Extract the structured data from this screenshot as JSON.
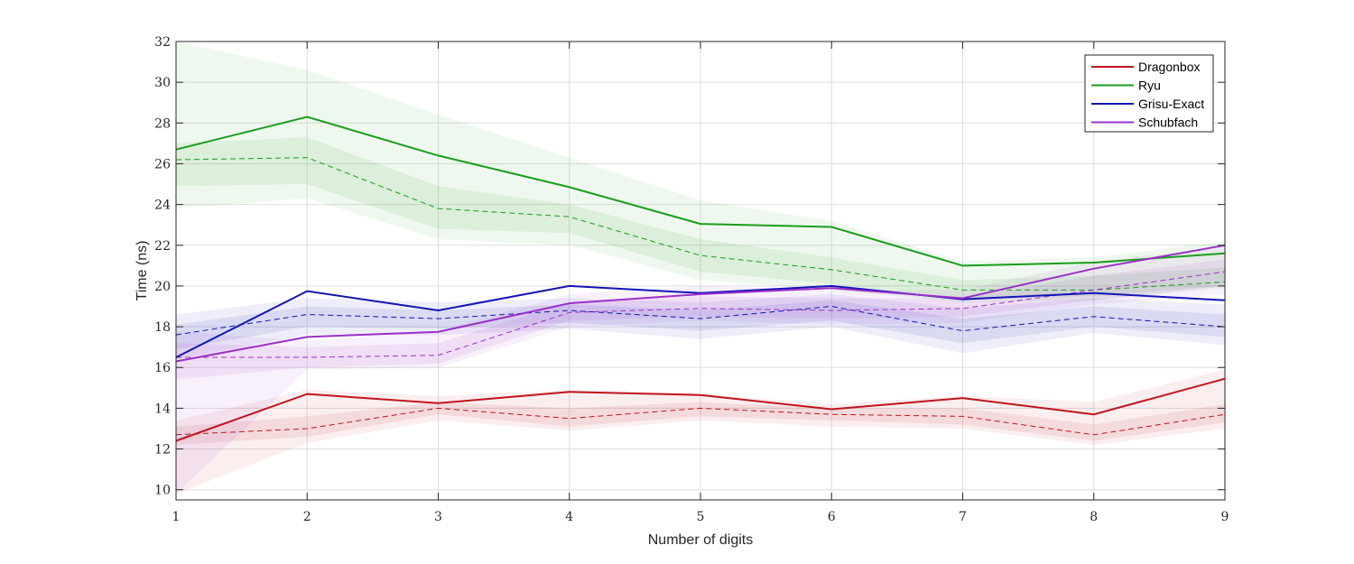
{
  "chart_data": {
    "type": "line",
    "title": "",
    "xlabel": "Number of digits",
    "ylabel": "Time (ns)",
    "x": [
      1,
      2,
      3,
      4,
      5,
      6,
      7,
      8,
      9
    ],
    "xlim": [
      1,
      9
    ],
    "ylim": [
      9.5,
      32
    ],
    "xticks": [
      1,
      2,
      3,
      4,
      5,
      6,
      7,
      8,
      9
    ],
    "yticks": [
      10,
      12,
      14,
      16,
      18,
      20,
      22,
      24,
      26,
      28,
      30,
      32
    ],
    "grid": true,
    "legend_position": "top-right",
    "series": [
      {
        "name": "Dragonbox",
        "color": "#c0141e",
        "mean": [
          12.4,
          14.7,
          14.25,
          14.8,
          14.65,
          13.95,
          14.5,
          13.7,
          15.45
        ],
        "median": [
          12.7,
          13.0,
          14.0,
          13.5,
          14.0,
          13.7,
          13.6,
          12.7,
          13.7
        ],
        "band_outer": {
          "lower": [
            9.8,
            12.3,
            13.4,
            12.9,
            13.4,
            13.1,
            13.0,
            12.2,
            13.0
          ],
          "upper": [
            13.4,
            14.9,
            14.6,
            14.9,
            14.7,
            14.2,
            14.6,
            14.3,
            15.9
          ]
        },
        "band_inner": {
          "lower": [
            12.2,
            12.6,
            13.7,
            13.1,
            13.6,
            13.4,
            13.2,
            12.4,
            13.3
          ],
          "upper": [
            13.1,
            13.6,
            14.3,
            14.0,
            14.3,
            14.0,
            14.0,
            13.2,
            14.2
          ]
        }
      },
      {
        "name": "Ryu",
        "color": "#1a9e1a",
        "mean": [
          26.7,
          28.3,
          26.4,
          24.85,
          23.05,
          22.9,
          21.0,
          21.15,
          21.6
        ],
        "median": [
          26.2,
          26.3,
          23.8,
          23.4,
          21.5,
          20.8,
          19.8,
          19.8,
          20.2
        ],
        "band_outer": {
          "lower": [
            23.8,
            24.3,
            22.3,
            22.0,
            20.3,
            19.8,
            19.2,
            19.3,
            19.9
          ],
          "upper": [
            32.0,
            30.6,
            28.4,
            26.3,
            24.2,
            23.2,
            21.2,
            21.4,
            22.2
          ]
        },
        "band_inner": {
          "lower": [
            24.9,
            25.0,
            22.8,
            22.6,
            20.7,
            20.1,
            19.4,
            19.5,
            20.0
          ],
          "upper": [
            27.0,
            27.3,
            24.9,
            24.0,
            22.3,
            21.4,
            20.3,
            20.5,
            20.9
          ]
        }
      },
      {
        "name": "Grisu-Exact",
        "color": "#1414b4",
        "mean": [
          16.5,
          19.75,
          18.8,
          20.0,
          19.65,
          20.0,
          19.35,
          19.65,
          19.3
        ],
        "median": [
          17.6,
          18.6,
          18.4,
          18.8,
          18.4,
          19.0,
          17.8,
          18.5,
          18.0
        ],
        "band_outer": {
          "lower": [
            16.4,
            17.6,
            17.6,
            17.9,
            17.4,
            18.0,
            16.7,
            17.7,
            17.1
          ],
          "upper": [
            18.6,
            19.4,
            19.2,
            19.4,
            19.2,
            19.6,
            18.9,
            19.4,
            19.1
          ]
        },
        "band_inner": {
          "lower": [
            16.9,
            18.0,
            17.9,
            18.2,
            17.8,
            18.3,
            17.2,
            18.0,
            17.5
          ],
          "upper": [
            18.1,
            19.0,
            18.8,
            19.1,
            18.8,
            19.3,
            18.4,
            19.0,
            18.6
          ]
        }
      },
      {
        "name": "Schubfach",
        "color": "#9b30c8",
        "mean": [
          16.3,
          17.5,
          17.75,
          19.15,
          19.6,
          19.9,
          19.4,
          20.85,
          22.0
        ],
        "median": [
          16.5,
          16.5,
          16.6,
          18.7,
          18.9,
          18.8,
          18.9,
          19.8,
          20.7
        ],
        "band_outer": {
          "lower": [
            9.8,
            15.9,
            16.0,
            18.0,
            18.3,
            18.1,
            18.2,
            19.1,
            19.6
          ],
          "upper": [
            17.8,
            17.3,
            17.8,
            19.6,
            20.0,
            19.8,
            19.8,
            21.2,
            21.9
          ]
        },
        "band_inner": {
          "lower": [
            15.4,
            16.0,
            16.2,
            18.3,
            18.5,
            18.4,
            18.5,
            19.3,
            20.0
          ],
          "upper": [
            17.2,
            17.0,
            17.2,
            19.2,
            19.5,
            19.4,
            19.4,
            20.5,
            21.3
          ]
        }
      }
    ]
  }
}
